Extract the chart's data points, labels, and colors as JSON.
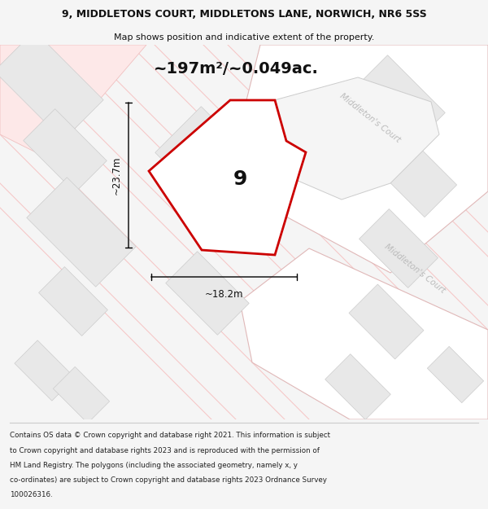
{
  "title_line1": "9, MIDDLETONS COURT, MIDDLETONS LANE, NORWICH, NR6 5SS",
  "title_line2": "Map shows position and indicative extent of the property.",
  "area_text": "~197m²/~0.049ac.",
  "plot_number": "9",
  "dim_height": "~23.7m",
  "dim_width": "~18.2m",
  "footer_lines": [
    "Contains OS data © Crown copyright and database right 2021. This information is subject",
    "to Crown copyright and database rights 2023 and is reproduced with the permission of",
    "HM Land Registry. The polygons (including the associated geometry, namely x, y",
    "co-ordinates) are subject to Crown copyright and database rights 2023 Ordnance Survey",
    "100026316."
  ],
  "bg_color": "#f5f5f5",
  "map_bg": "#f8f8f8",
  "road_label_1": "Middleton's Court",
  "road_label_2": "Middleton's Court",
  "tile_color": "#e8e8e8",
  "tile_edge": "#cccccc",
  "road_fill": "#ffffff",
  "road_outline": "#f0c0c0",
  "plot_fill": "#ffffff",
  "plot_edge": "#cc0000",
  "dim_color": "#111111",
  "text_color": "#111111",
  "road_text_color": "#bbbbbb"
}
